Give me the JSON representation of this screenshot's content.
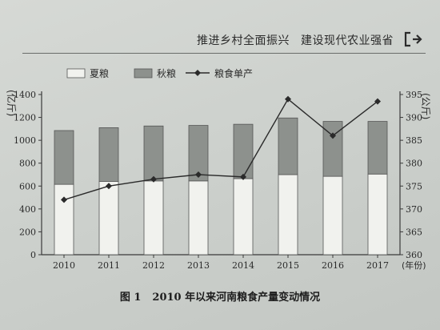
{
  "header": {
    "left": "推进乡村全面振兴",
    "right": "建设现代农业强省",
    "icon": "return-arrow-icon"
  },
  "caption": {
    "label": "图 1",
    "text": "2010 年以来河南粮食产量变动情况"
  },
  "colors": {
    "summer": "#f1f2ee",
    "autumn": "#8d918d",
    "line": "#2a2a2a",
    "axis": "#3a3a3a"
  },
  "chart_data": {
    "type": "bar",
    "stacked": true,
    "categories": [
      "2010",
      "2011",
      "2012",
      "2013",
      "2014",
      "2015",
      "2016",
      "2017"
    ],
    "series": [
      {
        "name": "夏粮",
        "type": "bar",
        "axis": "left",
        "values": [
          615,
          640,
          645,
          645,
          665,
          700,
          685,
          705
        ]
      },
      {
        "name": "秋粮",
        "type": "bar",
        "axis": "left",
        "values": [
          470,
          470,
          480,
          485,
          475,
          495,
          480,
          460
        ]
      },
      {
        "name": "粮食单产",
        "type": "line",
        "axis": "right",
        "values": [
          372,
          375,
          376.5,
          377.5,
          377,
          394,
          386,
          393.5
        ]
      }
    ],
    "y_left": {
      "label": "亿斤",
      "ylim": [
        0,
        1400
      ],
      "ticks": [
        0,
        200,
        400,
        600,
        800,
        1000,
        1200,
        1400
      ]
    },
    "y_right": {
      "label": "公斤",
      "ylim": [
        360,
        395
      ],
      "ticks": [
        360,
        365,
        370,
        375,
        380,
        385,
        390,
        395
      ]
    },
    "xlabel": "年份",
    "legend_position": "top-left",
    "grid": false
  }
}
